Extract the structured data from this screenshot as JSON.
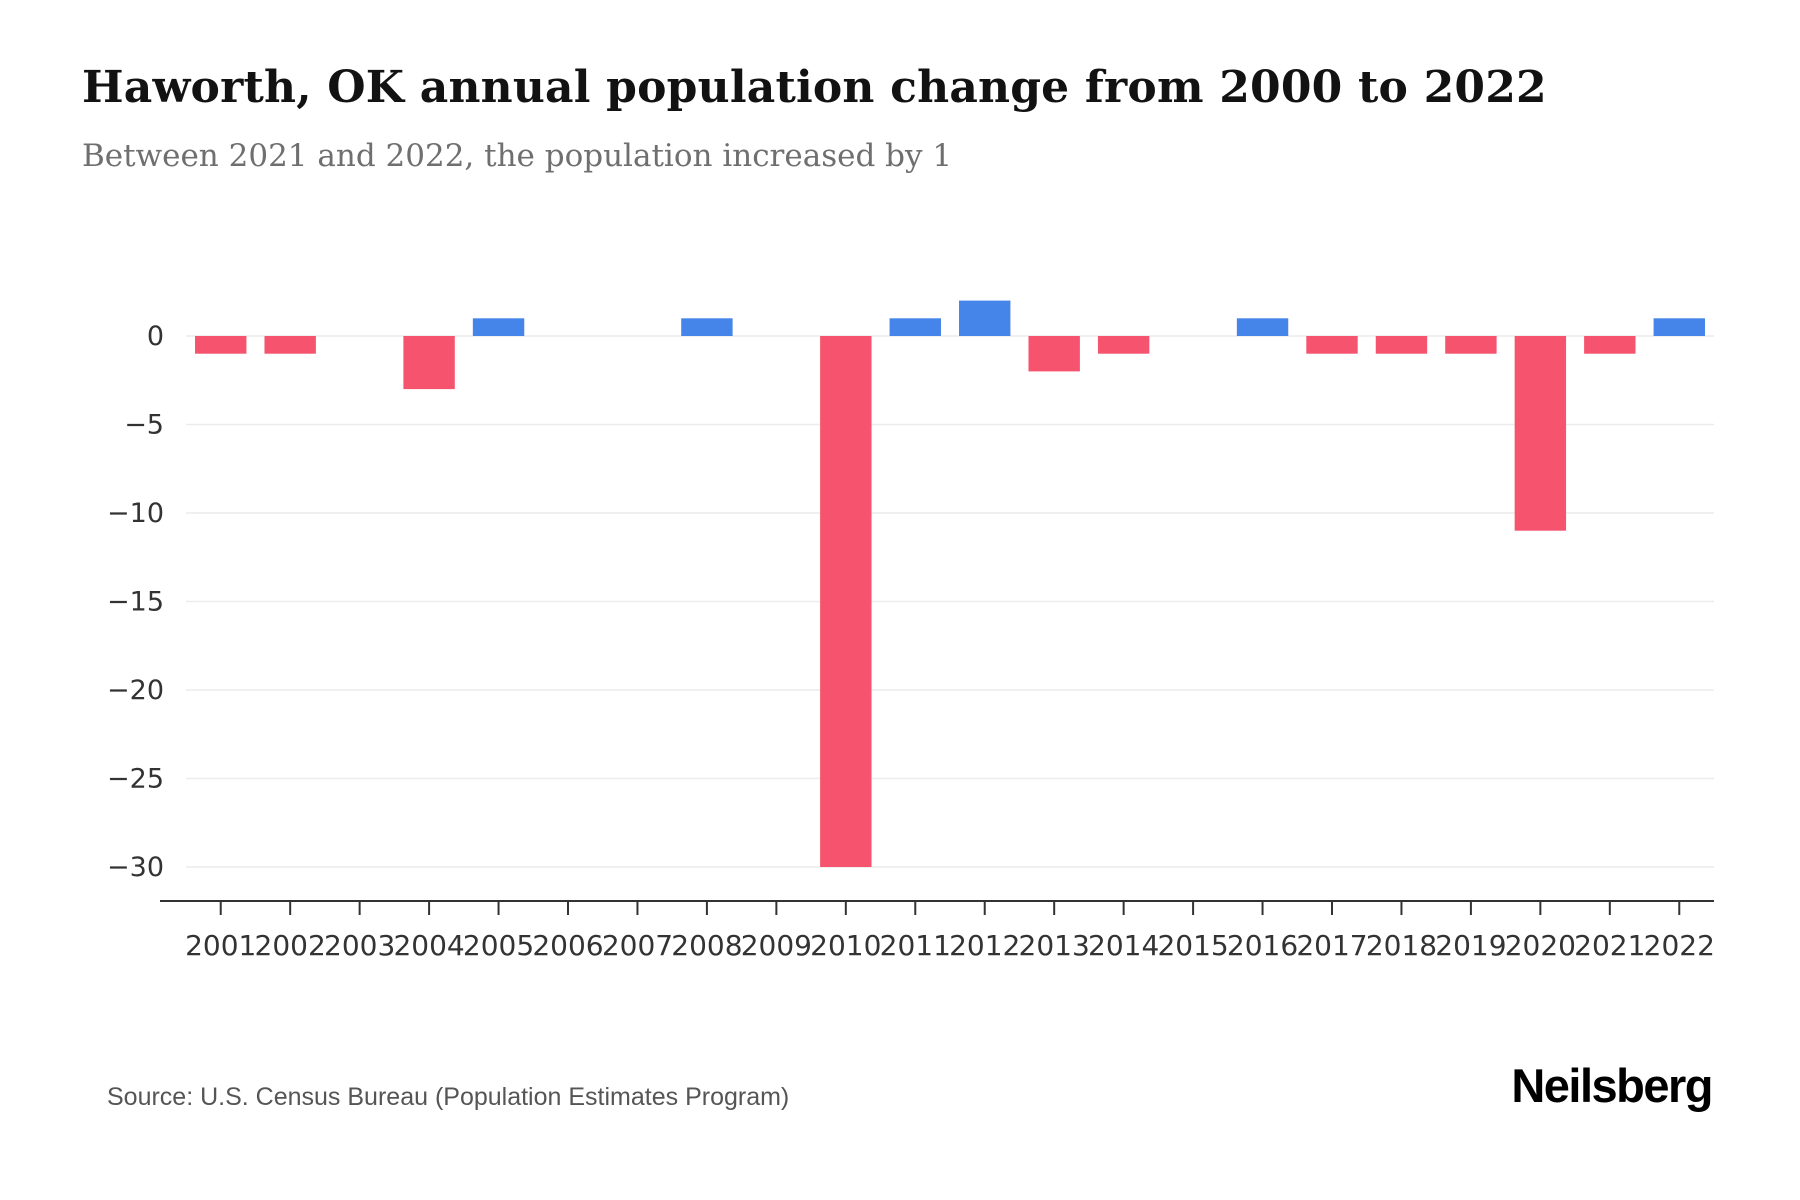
{
  "header": {
    "title": "Haworth, OK annual population change from 2000 to 2022",
    "subtitle": "Between 2021 and 2022, the population increased by 1"
  },
  "footer": {
    "source": "Source: U.S. Census Bureau (Population Estimates Program)",
    "logo": "Neilsberg"
  },
  "chart_data": {
    "type": "bar",
    "title": "Haworth, OK annual population change from 2000 to 2022",
    "xlabel": "",
    "ylabel": "",
    "categories": [
      "2001",
      "2002",
      "2003",
      "2004",
      "2005",
      "2006",
      "2007",
      "2008",
      "2009",
      "2010",
      "2011",
      "2012",
      "2013",
      "2014",
      "2015",
      "2016",
      "2017",
      "2018",
      "2019",
      "2020",
      "2021",
      "2022"
    ],
    "values": [
      -1,
      -1,
      0,
      -3,
      1,
      0,
      0,
      1,
      0,
      -30,
      1,
      2,
      -2,
      -1,
      0,
      1,
      -1,
      -1,
      -1,
      -11,
      -1,
      1
    ],
    "positive_color": "#4584e8",
    "negative_color": "#f5536e",
    "yticks": [
      0,
      -5,
      -10,
      -15,
      -20,
      -25,
      -30
    ],
    "ytick_labels": [
      "0",
      "−5",
      "−10",
      "−15",
      "−20",
      "−25",
      "−30"
    ],
    "ylim": [
      3,
      -31.5
    ],
    "grid": true,
    "legend": false,
    "grid_color": "#ececec",
    "axis_color": "#333333",
    "tick_label_color": "#333333"
  }
}
